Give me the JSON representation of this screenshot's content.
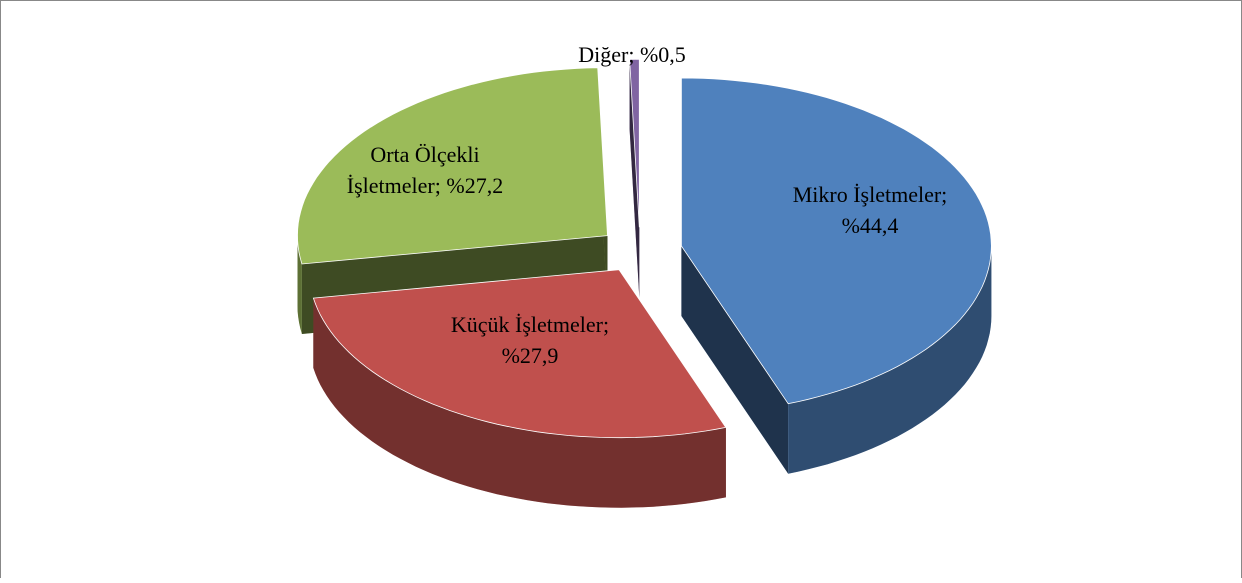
{
  "chart_data": {
    "type": "pie3d",
    "categories": [
      "Mikro İşletmeler",
      "Küçük İşletmeler",
      "Orta Ölçekli İşletmeler",
      "Diğer"
    ],
    "values": [
      44.4,
      27.9,
      27.2,
      0.5
    ],
    "value_labels": [
      [
        "Mikro İşletmeler;",
        "%44,4"
      ],
      [
        "Küçük İşletmeler;",
        "%27,9"
      ],
      [
        "Orta Ölçekli",
        "İşletmeler; %27,2"
      ],
      [
        "Diğer; %0,5"
      ]
    ],
    "colors": [
      "#4f81bd",
      "#c0504d",
      "#9bbb59",
      "#8064a2"
    ]
  }
}
